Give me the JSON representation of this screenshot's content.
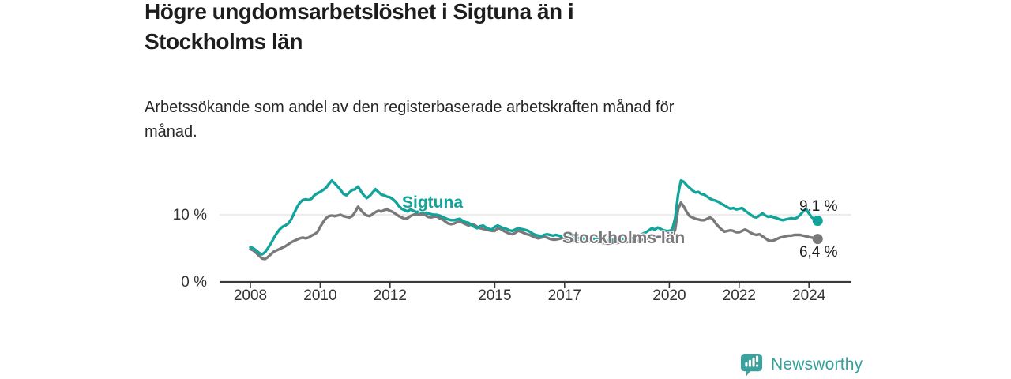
{
  "header": {
    "title": "Högre ungdomsarbetslöshet i Sigtuna än i\nStockholms län",
    "subtitle": "Arbetssökande som andel av den registerbaserade arbetskraften månad för\nmånad."
  },
  "chart_data": {
    "type": "line",
    "title": "Högre ungdomsarbetslöshet i Sigtuna än i Stockholms län",
    "subtitle": "Arbetssökande som andel av den registerbaserade arbetskraften månad för månad.",
    "x_unit": "month",
    "x_start": "2008-01",
    "x_end": "2024-04",
    "x_ticks": [
      "2008",
      "2010",
      "2012",
      "2015",
      "2017",
      "2020",
      "2022",
      "2024"
    ],
    "y_ticks": [
      {
        "value": 0,
        "label": "0 %"
      },
      {
        "value": 10,
        "label": "10 %"
      }
    ],
    "ylim": [
      0,
      16.5
    ],
    "grid": "single horizontal gridline at 10 %",
    "legend_position": "inline labels on lines, end-value labels at right",
    "axis_color": "#3a3a3a",
    "gridline_color": "#d9d9d9",
    "series": [
      {
        "name": "Sigtuna",
        "color": "#12a39a",
        "end_value_label": "9,1 %",
        "values": [
          5.2,
          5.0,
          4.7,
          4.3,
          4.1,
          4.4,
          5.0,
          5.7,
          6.5,
          7.2,
          7.8,
          8.2,
          8.4,
          8.7,
          9.3,
          10.2,
          11.1,
          11.8,
          12.2,
          12.3,
          12.2,
          12.4,
          12.9,
          13.2,
          13.4,
          13.7,
          14.0,
          14.6,
          15.1,
          14.7,
          14.2,
          13.7,
          13.1,
          12.9,
          13.3,
          13.7,
          13.8,
          14.2,
          13.5,
          12.9,
          12.5,
          12.8,
          13.3,
          13.8,
          13.4,
          13.0,
          12.9,
          12.7,
          12.6,
          12.3,
          11.9,
          11.3,
          10.9,
          10.7,
          10.5,
          10.8,
          10.6,
          10.4,
          10.5,
          10.4,
          10.4,
          10.2,
          10.1,
          10.0,
          10.0,
          9.9,
          9.7,
          9.5,
          9.3,
          9.2,
          9.2,
          9.3,
          9.4,
          9.1,
          8.9,
          8.8,
          8.5,
          8.2,
          8.0,
          8.3,
          8.4,
          8.1,
          7.9,
          7.8,
          8.2,
          8.4,
          8.2,
          8.0,
          7.9,
          7.7,
          7.6,
          7.8,
          8.0,
          7.9,
          7.8,
          7.7,
          7.5,
          7.2,
          7.0,
          6.9,
          6.8,
          7.0,
          7.1,
          7.0,
          6.9,
          7.0,
          6.9,
          6.8,
          7.0,
          6.9,
          6.8,
          6.7,
          6.6,
          6.5,
          6.4,
          6.5,
          6.4,
          6.3,
          6.4,
          6.5,
          6.4,
          6.3,
          6.2,
          6.1,
          6.2,
          6.3,
          6.2,
          6.3,
          6.4,
          6.5,
          6.4,
          6.5,
          6.6,
          6.8,
          7.0,
          7.2,
          7.4,
          7.7,
          8.0,
          7.8,
          8.1,
          7.9,
          7.7,
          7.6,
          7.6,
          7.8,
          9.5,
          13.0,
          15.1,
          14.9,
          14.4,
          14.0,
          13.6,
          13.3,
          13.4,
          13.1,
          13.0,
          12.7,
          12.4,
          12.2,
          12.1,
          11.9,
          11.6,
          11.4,
          11.1,
          10.9,
          11.0,
          10.8,
          10.9,
          11.0,
          10.6,
          10.3,
          10.0,
          9.7,
          9.6,
          9.9,
          10.2,
          9.9,
          9.7,
          9.8,
          9.6,
          9.5,
          9.3,
          9.2,
          9.3,
          9.4,
          9.5,
          9.4,
          9.6,
          10.0,
          10.5,
          10.9,
          10.2,
          9.6,
          9.3,
          9.1
        ]
      },
      {
        "name": "Stockholms län",
        "color": "#7a787b",
        "end_value_label": "6,4 %",
        "values": [
          4.9,
          4.7,
          4.3,
          3.9,
          3.5,
          3.4,
          3.7,
          4.1,
          4.5,
          4.7,
          4.9,
          5.1,
          5.3,
          5.6,
          5.9,
          6.1,
          6.3,
          6.5,
          6.6,
          6.5,
          6.6,
          6.9,
          7.1,
          7.4,
          8.2,
          8.9,
          9.5,
          9.8,
          9.9,
          9.8,
          9.9,
          10.0,
          9.8,
          9.7,
          9.6,
          9.8,
          10.4,
          11.2,
          10.7,
          10.2,
          9.9,
          9.8,
          10.1,
          10.4,
          10.6,
          10.5,
          10.7,
          10.8,
          10.6,
          10.4,
          10.1,
          9.8,
          9.6,
          9.4,
          9.5,
          9.8,
          10.0,
          10.1,
          10.0,
          10.1,
          10.0,
          9.7,
          9.6,
          9.7,
          9.8,
          9.5,
          9.3,
          9.0,
          8.7,
          8.6,
          8.7,
          8.9,
          9.0,
          8.8,
          8.6,
          8.4,
          8.6,
          8.5,
          8.2,
          8.0,
          7.9,
          7.8,
          7.7,
          7.6,
          7.6,
          8.0,
          7.9,
          7.6,
          7.4,
          7.2,
          7.1,
          7.3,
          7.6,
          7.5,
          7.3,
          7.1,
          7.0,
          6.8,
          6.6,
          6.5,
          6.6,
          6.7,
          6.6,
          6.4,
          6.3,
          6.3,
          6.4,
          6.5,
          6.5,
          6.4,
          6.3,
          6.2,
          6.1,
          6.0,
          6.1,
          6.2,
          6.1,
          6.0,
          5.9,
          6.0,
          5.9,
          5.8,
          5.8,
          5.7,
          5.8,
          5.9,
          5.8,
          5.9,
          6.0,
          5.9,
          6.0,
          6.0,
          6.0,
          6.1,
          6.2,
          6.3,
          6.4,
          6.5,
          6.6,
          6.6,
          6.7,
          6.7,
          6.6,
          6.5,
          6.6,
          6.8,
          7.8,
          10.8,
          11.8,
          11.2,
          10.4,
          9.8,
          9.6,
          9.4,
          9.3,
          9.2,
          9.2,
          9.4,
          9.6,
          9.3,
          8.7,
          8.2,
          7.8,
          7.5,
          7.6,
          7.7,
          7.6,
          7.4,
          7.4,
          7.6,
          7.8,
          7.6,
          7.3,
          7.1,
          7.0,
          7.1,
          6.8,
          6.5,
          6.2,
          6.1,
          6.2,
          6.4,
          6.6,
          6.7,
          6.8,
          6.9,
          6.9,
          7.0,
          7.0,
          7.0,
          6.9,
          6.8,
          6.7,
          6.6,
          6.5,
          6.4
        ]
      }
    ]
  },
  "footer": {
    "logo_text": "Newsworthy",
    "logo_color": "#35a09c",
    "logo_icon": "bar-chart-speech-bubble-icon"
  }
}
